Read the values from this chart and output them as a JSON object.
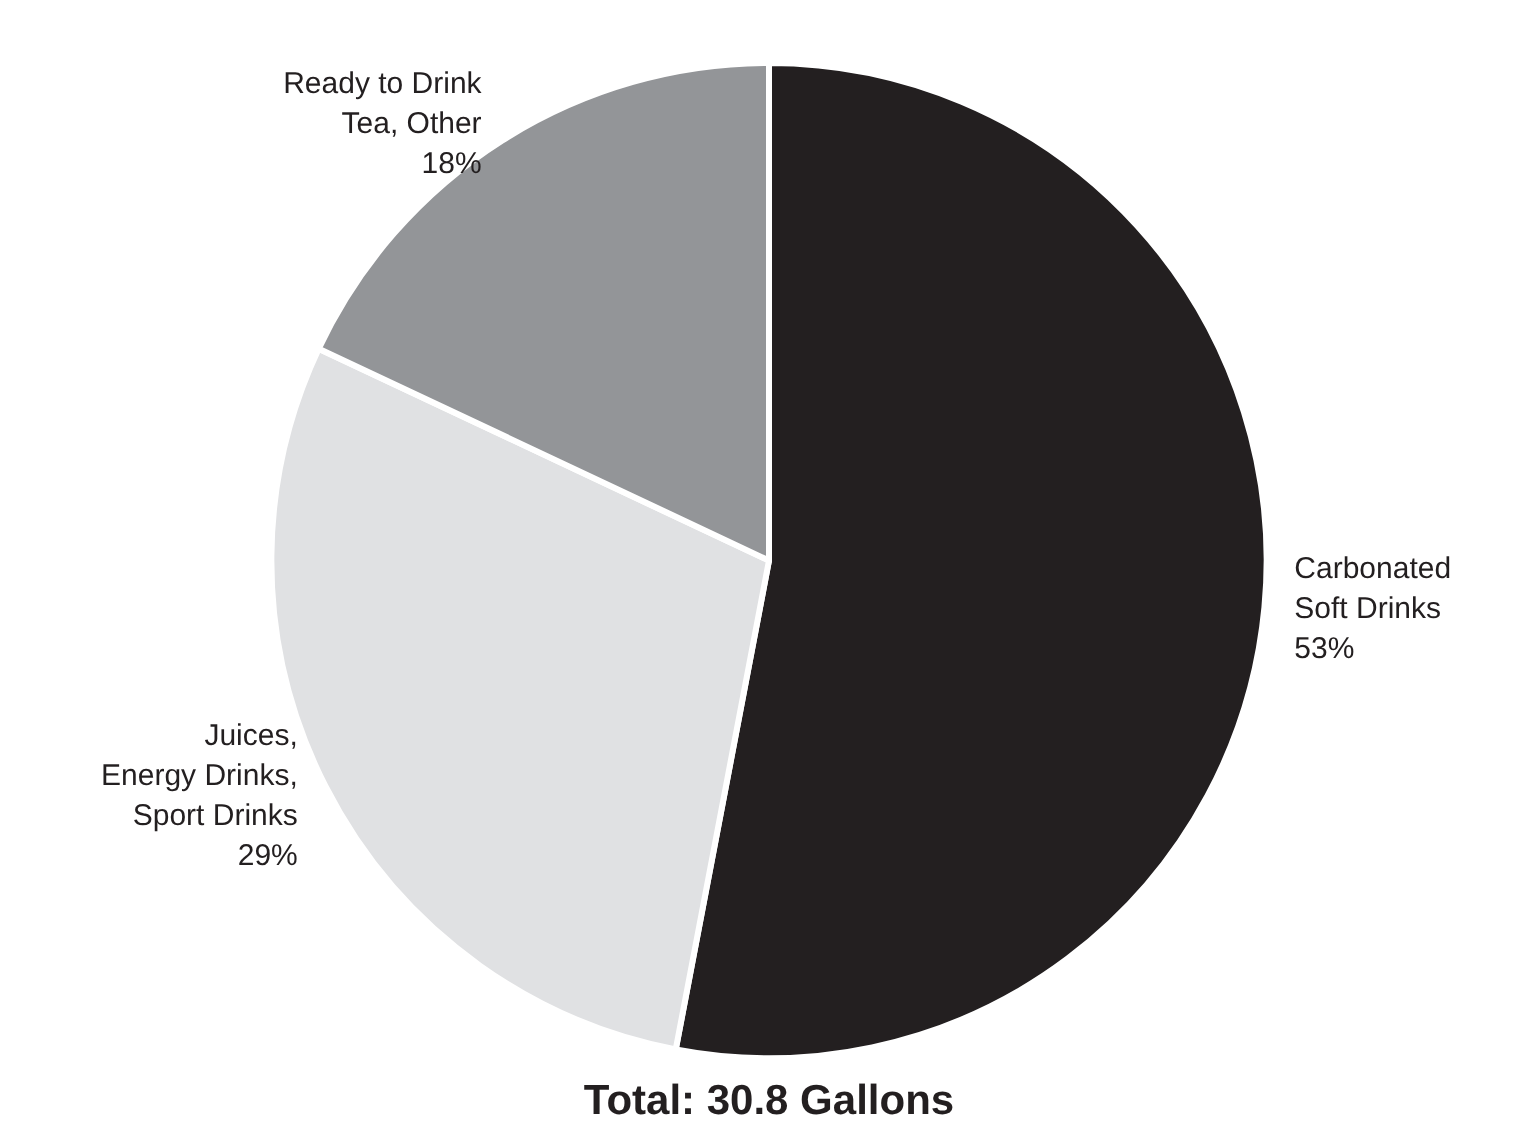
{
  "chart_data": {
    "type": "pie",
    "title": "Total: 30.8 Gallons",
    "categories": [
      "Carbonated\nSoft Drinks",
      "Juices,\nEnergy Drinks,\nSport Drinks",
      "Ready to Drink\nTea, Other"
    ],
    "values": [
      53,
      29,
      18
    ],
    "value_labels": [
      "53%",
      "29%",
      "18%"
    ],
    "colors": [
      "#231f20",
      "#e0e1e3",
      "#939598"
    ]
  }
}
